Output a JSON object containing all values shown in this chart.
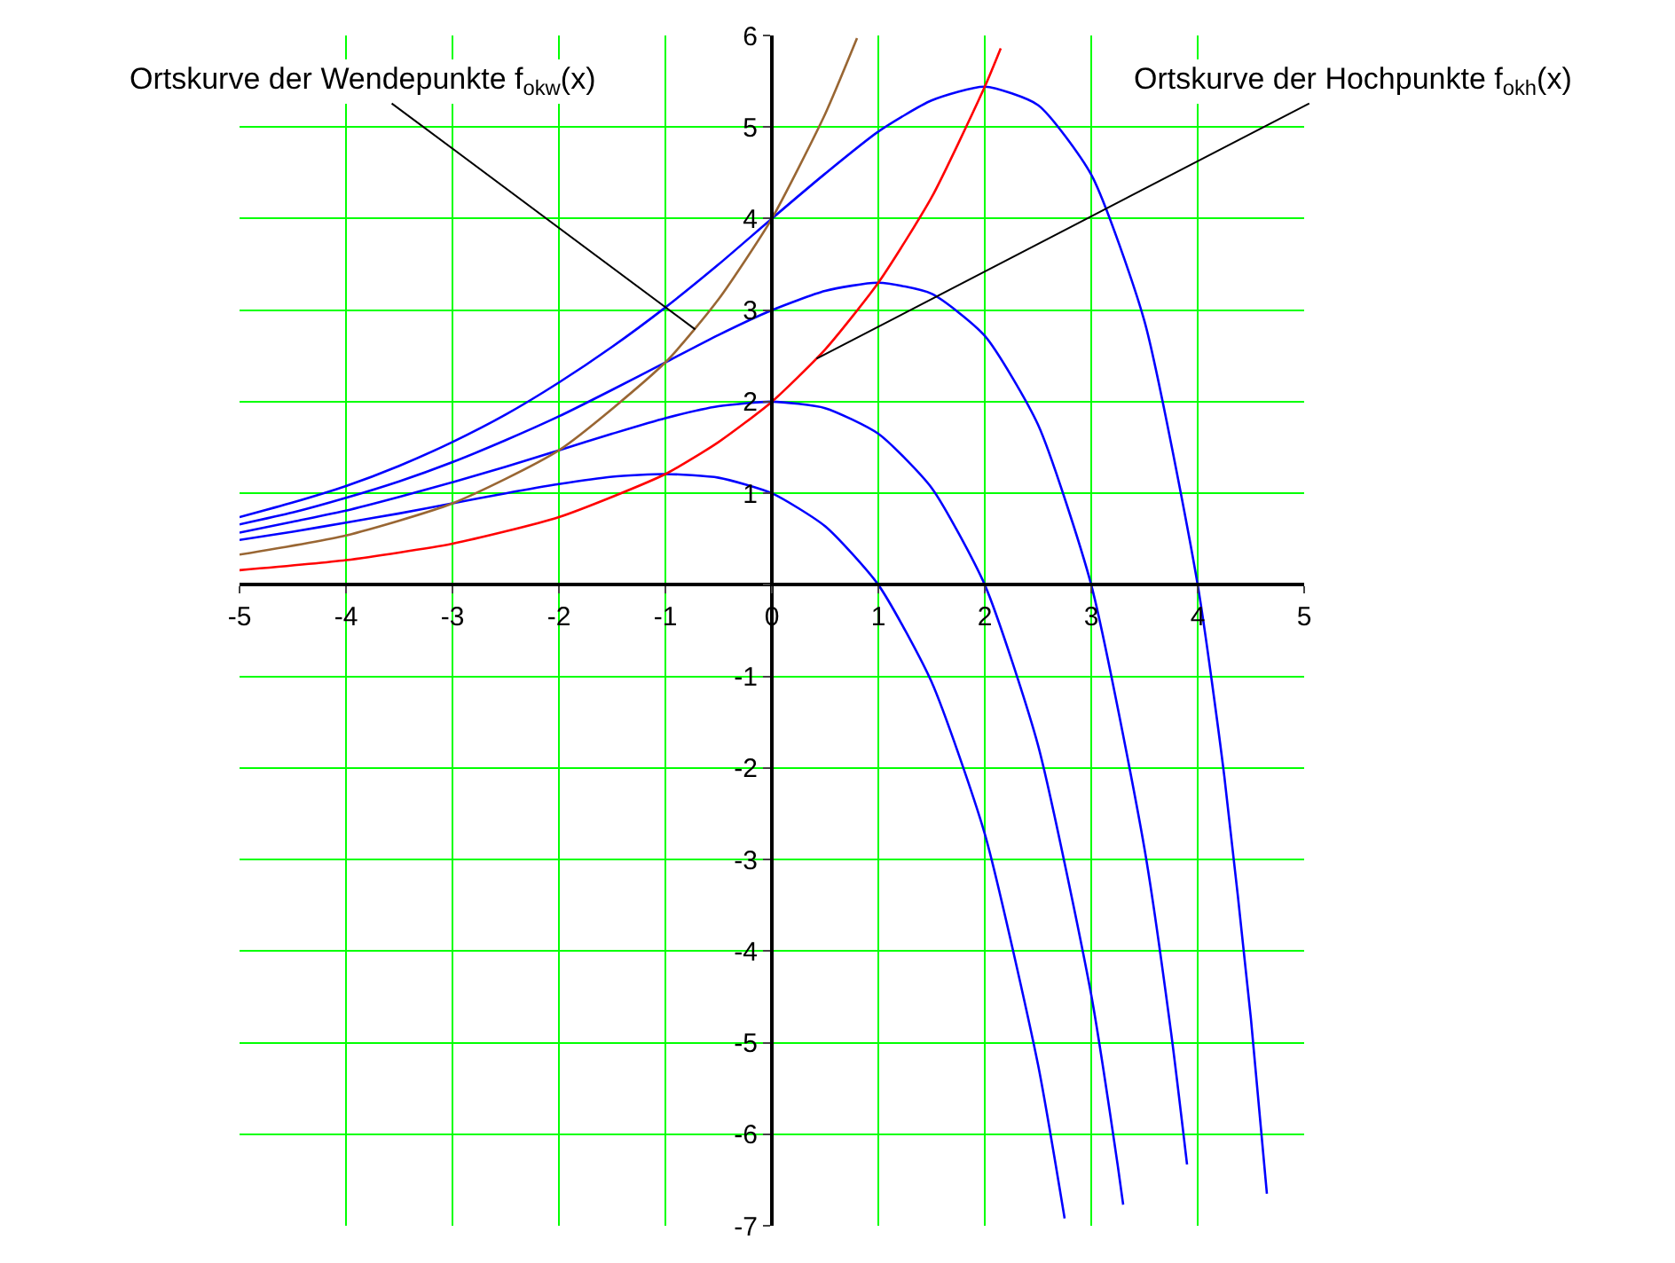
{
  "chart_data": {
    "type": "line",
    "series": [
      {
        "color": "#0000ff",
        "x": [
          -5,
          -4.5,
          -4,
          -3.5,
          -3,
          -2.5,
          -2,
          -1.5,
          -1,
          -0.5,
          0,
          0.5,
          1,
          1.5,
          2,
          2.5,
          2.75
        ],
        "values": [
          0.49,
          0.58,
          0.68,
          0.78,
          0.89,
          1.0,
          1.1,
          1.18,
          1.21,
          1.17,
          1,
          0.64,
          0,
          -1.06,
          -2.72,
          -5.24,
          -6.92
        ]
      },
      {
        "color": "#0000ff",
        "x": [
          -5,
          -4.5,
          -4,
          -3.5,
          -3,
          -2.5,
          -2,
          -1.5,
          -1,
          -0.5,
          0,
          0.5,
          1,
          1.5,
          2,
          2.5,
          3,
          3.25,
          3.3
        ],
        "values": [
          0.57,
          0.69,
          0.81,
          0.96,
          1.12,
          1.29,
          1.47,
          1.65,
          1.82,
          1.95,
          2,
          1.93,
          1.65,
          1.06,
          0,
          -1.75,
          -4.48,
          -6.35,
          -6.77
        ]
      },
      {
        "color": "#0000ff",
        "x": [
          -5,
          -4.5,
          -4,
          -3.5,
          -3,
          -2.5,
          -2,
          -1.5,
          -1,
          -0.5,
          0,
          0.5,
          1,
          1.5,
          2,
          2.5,
          3,
          3.5,
          3.75,
          3.9
        ],
        "values": [
          0.66,
          0.79,
          0.95,
          1.13,
          1.34,
          1.58,
          1.84,
          2.13,
          2.43,
          2.73,
          3,
          3.21,
          3.3,
          3.18,
          2.72,
          1.75,
          0,
          -2.88,
          -4.89,
          -6.33
        ]
      },
      {
        "color": "#0000ff",
        "x": [
          -5,
          -4.5,
          -4,
          -3.5,
          -3,
          -2.5,
          -2,
          -1.5,
          -1,
          -0.5,
          0,
          0.5,
          1,
          1.5,
          2,
          2.5,
          3,
          3.5,
          4,
          4.25,
          4.5,
          4.65
        ],
        "values": [
          0.74,
          0.9,
          1.08,
          1.3,
          1.56,
          1.86,
          2.21,
          2.6,
          3.03,
          3.5,
          4,
          4.49,
          4.95,
          5.29,
          5.44,
          5.24,
          4.48,
          2.88,
          0,
          -2.09,
          -4.74,
          -6.65
        ]
      },
      {
        "color": "#ff0000",
        "x": [
          -5,
          -4,
          -3,
          -2,
          -1,
          -0.5,
          0,
          0.5,
          1,
          1.5,
          2,
          2.15
        ],
        "values": [
          0.16,
          0.27,
          0.45,
          0.74,
          1.21,
          1.56,
          2,
          2.57,
          3.3,
          4.23,
          5.44,
          5.86
        ]
      },
      {
        "color": "#996633",
        "x": [
          -5,
          -4,
          -3,
          -2,
          -1,
          -0.5,
          0,
          0.5,
          0.8
        ],
        "values": [
          0.33,
          0.54,
          0.89,
          1.47,
          2.43,
          3.12,
          4,
          5.14,
          5.97
        ]
      }
    ],
    "xlim": [
      -5,
      5
    ],
    "xticks": [
      -5,
      -4,
      -3,
      -2,
      -1,
      0,
      1,
      2,
      3,
      4,
      5
    ],
    "ylim": [
      -7,
      6
    ],
    "yticks": [
      -7,
      -6,
      -5,
      -4,
      -3,
      -2,
      -1,
      {
        "value": 0,
        "label": null
      },
      1,
      2,
      3,
      4,
      5,
      6
    ],
    "grid": true,
    "marker": "none",
    "line_style": "solid",
    "annotations": [
      {
        "text": "Ortskurve der Wendepunkte f$_{okw}$(x)",
        "x": -0.72,
        "y": 2.79
      },
      {
        "text": "Ortskurve der Hochpunkte f$_{okh}$(x)",
        "x": 0.42,
        "y": 2.47
      }
    ]
  }
}
